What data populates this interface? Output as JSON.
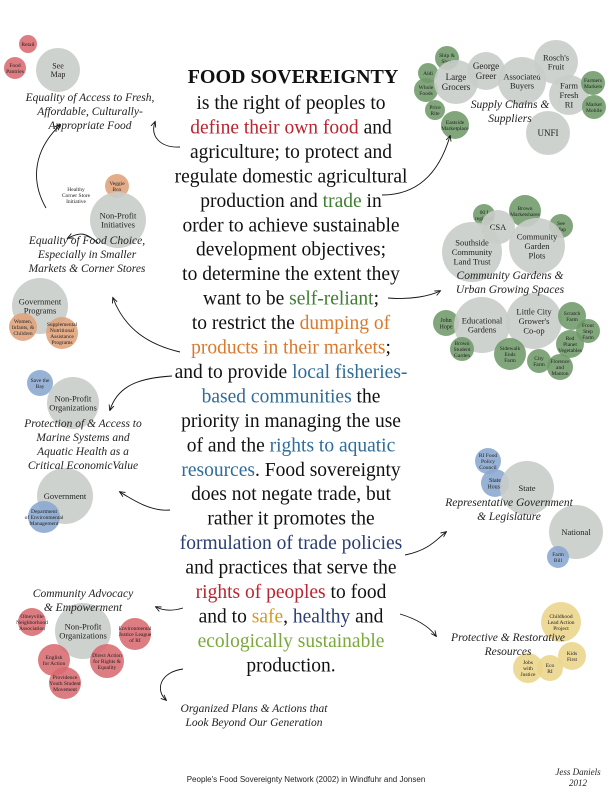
{
  "title": "FOOD SOVEREIGNTY",
  "colors": {
    "red": "#b8242f",
    "green": "#3f7d2f",
    "orange": "#d9792e",
    "blue": "#2e6c9a",
    "navy": "#2b3d73",
    "gold": "#d89a22",
    "ltgreen": "#7aa83b",
    "gray_bubble": "#c9cdc9",
    "red_bubble": "#d86a6f",
    "green_bubble": "#6f9a6a",
    "orange_bubble": "#e0a27a",
    "blue_bubble": "#8aa7d0",
    "yellow_bubble": "#ecd58a"
  },
  "body_lines": [
    [
      {
        "t": "is the right of peoples to",
        "c": ""
      }
    ],
    [
      {
        "t": "define their own food",
        "c": "red"
      },
      {
        "t": " and",
        "c": ""
      }
    ],
    [
      {
        "t": "agriculture; to protect and",
        "c": ""
      }
    ],
    [
      {
        "t": "regulate domestic agricultural",
        "c": ""
      }
    ],
    [
      {
        "t": "production and ",
        "c": ""
      },
      {
        "t": "trade",
        "c": "green"
      },
      {
        "t": " in",
        "c": ""
      }
    ],
    [
      {
        "t": "order to achieve sustainable",
        "c": ""
      }
    ],
    [
      {
        "t": "development objectives;",
        "c": ""
      }
    ],
    [
      {
        "t": "to determine the extent they",
        "c": ""
      }
    ],
    [
      {
        "t": "want to be ",
        "c": ""
      },
      {
        "t": "self-reliant",
        "c": "green"
      },
      {
        "t": ";",
        "c": ""
      }
    ],
    [
      {
        "t": "to restrict the ",
        "c": ""
      },
      {
        "t": "dumping of",
        "c": "orange"
      }
    ],
    [
      {
        "t": "products in their markets",
        "c": "orange"
      },
      {
        "t": ";",
        "c": ""
      }
    ],
    [
      {
        "t": "and to provide ",
        "c": ""
      },
      {
        "t": "local fisheries-",
        "c": "blue"
      }
    ],
    [
      {
        "t": "based communities",
        "c": "blue"
      },
      {
        "t": " the",
        "c": ""
      }
    ],
    [
      {
        "t": "priority in managing the use",
        "c": ""
      }
    ],
    [
      {
        "t": "of and the ",
        "c": ""
      },
      {
        "t": "rights to aquatic",
        "c": "blue"
      }
    ],
    [
      {
        "t": "resources",
        "c": "blue"
      },
      {
        "t": ". Food sovereignty",
        "c": ""
      }
    ],
    [
      {
        "t": "does not negate trade, but",
        "c": ""
      }
    ],
    [
      {
        "t": "rather it promotes the",
        "c": ""
      }
    ],
    [
      {
        "t": "formulation of trade policies",
        "c": "navy"
      }
    ],
    [
      {
        "t": "and practices that serve the",
        "c": ""
      }
    ],
    [
      {
        "t": "rights of peoples",
        "c": "red"
      },
      {
        "t": " to food",
        "c": ""
      }
    ],
    [
      {
        "t": "and to ",
        "c": ""
      },
      {
        "t": "safe",
        "c": "gold"
      },
      {
        "t": ", ",
        "c": ""
      },
      {
        "t": "healthy",
        "c": "navy"
      },
      {
        "t": " and",
        "c": ""
      }
    ],
    [
      {
        "t": "ecologically sustainable",
        "c": "ltgreen"
      }
    ],
    [
      {
        "t": "production.",
        "c": ""
      }
    ]
  ],
  "labels": [
    {
      "id": "label-equality-access",
      "lines": [
        "Equality of Access to Fresh,",
        "Affordable, Culturally-",
        "Appropriate Food"
      ]
    },
    {
      "id": "label-supply-chains",
      "lines": [
        "Supply Chains &",
        "Suppliers"
      ]
    },
    {
      "id": "label-equality-choice",
      "lines": [
        "Equality of Food Choice,",
        "Especially in Smaller",
        "Markets & Corner Stores"
      ]
    },
    {
      "id": "label-community-gardens",
      "lines": [
        "Community Gardens &",
        "Urban Growing Spaces"
      ]
    },
    {
      "id": "label-marine",
      "lines": [
        "Protection of & Access to",
        "Marine Systems and",
        "Aquatic Health as a",
        "Critical EconomicValue"
      ]
    },
    {
      "id": "label-representative",
      "lines": [
        "Representative Government",
        "& Legislature"
      ]
    },
    {
      "id": "label-advocacy",
      "lines": [
        "Community Advocacy",
        "& Empowerment"
      ]
    },
    {
      "id": "label-protective",
      "lines": [
        "Protective & Restorative",
        "Resources"
      ]
    },
    {
      "id": "label-organized",
      "lines": [
        "Organized Plans & Actions that",
        "Look Beyond Our Generation"
      ]
    }
  ],
  "bubbles": [
    {
      "lines": [
        "See",
        "Map"
      ],
      "c": "gray_bubble"
    },
    {
      "lines": [
        "Retail"
      ],
      "c": "red_bubble"
    },
    {
      "lines": [
        "Food",
        "Pantries"
      ],
      "c": "red_bubble"
    },
    {
      "lines": [
        "Ship &",
        "Shop"
      ],
      "c": "green_bubble"
    },
    {
      "lines": [
        "Aldi"
      ],
      "c": "green_bubble"
    },
    {
      "lines": [
        "Whole",
        "Foods"
      ],
      "c": "green_bubble"
    },
    {
      "lines": [
        "Large",
        "Grocers"
      ],
      "c": "gray_bubble"
    },
    {
      "lines": [
        "George",
        "Greer"
      ],
      "c": "gray_bubble"
    },
    {
      "lines": [
        "Associated",
        "Buyers"
      ],
      "c": "gray_bubble"
    },
    {
      "lines": [
        "Rosch's",
        "Fruit"
      ],
      "c": "gray_bubble"
    },
    {
      "lines": [
        "Farm",
        "Fresh",
        "RI"
      ],
      "c": "gray_bubble"
    },
    {
      "lines": [
        "Farmers",
        "Markets"
      ],
      "c": "green_bubble"
    },
    {
      "lines": [
        "Market",
        "Mobile"
      ],
      "c": "green_bubble"
    },
    {
      "lines": [
        "Price",
        "Rite"
      ],
      "c": "green_bubble"
    },
    {
      "lines": [
        "Eastside",
        "Marketplace"
      ],
      "c": "green_bubble"
    },
    {
      "lines": [
        "UNFI"
      ],
      "c": "gray_bubble"
    },
    {
      "lines": [
        "Veggie",
        "Box"
      ],
      "c": "orange_bubble"
    },
    {
      "lines": [
        "Healthy",
        "Corner Store",
        "Initiative"
      ],
      "c": "none"
    },
    {
      "lines": [
        "Non-Profit",
        "Initiatives"
      ],
      "c": "gray_bubble"
    },
    {
      "lines": [
        "Brown",
        "Marketshares"
      ],
      "c": "green_bubble"
    },
    {
      "lines": [
        "60 I",
        "regional"
      ],
      "c": "green_bubble"
    },
    {
      "lines": [
        "CSA"
      ],
      "c": "gray_bubble"
    },
    {
      "lines": [
        "See",
        "Map"
      ],
      "c": "green_bubble"
    },
    {
      "lines": [
        "Southside",
        "Community",
        "Land Trust"
      ],
      "c": "gray_bubble"
    },
    {
      "lines": [
        "Community",
        "Garden",
        "Plots"
      ],
      "c": "gray_bubble"
    },
    {
      "lines": [
        "Government",
        "Programs"
      ],
      "c": "gray_bubble"
    },
    {
      "lines": [
        "Women,",
        "Infants, &",
        "Children"
      ],
      "c": "orange_bubble"
    },
    {
      "lines": [
        "Supplemental",
        "Nutritional",
        "Assistance",
        "Programs"
      ],
      "c": "orange_bubble"
    },
    {
      "lines": [
        "John",
        "Hope"
      ],
      "c": "green_bubble"
    },
    {
      "lines": [
        "Educational",
        "Gardens"
      ],
      "c": "gray_bubble"
    },
    {
      "lines": [
        "Little City",
        "Grower's",
        "Co-op"
      ],
      "c": "gray_bubble"
    },
    {
      "lines": [
        "Scratch",
        "Farm"
      ],
      "c": "green_bubble"
    },
    {
      "lines": [
        "Front",
        "Step",
        "Farm"
      ],
      "c": "green_bubble"
    },
    {
      "lines": [
        "Red",
        "Planet",
        "Vegetables"
      ],
      "c": "green_bubble"
    },
    {
      "lines": [
        "Brown",
        "Student",
        "Garden"
      ],
      "c": "green_bubble"
    },
    {
      "lines": [
        "Sidewalk",
        "Ends",
        "Farm"
      ],
      "c": "green_bubble"
    },
    {
      "lines": [
        "City",
        "Farm"
      ],
      "c": "green_bubble"
    },
    {
      "lines": [
        "Florence",
        "and",
        "Manton"
      ],
      "c": "green_bubble"
    },
    {
      "lines": [
        "Save the",
        "Bay"
      ],
      "c": "blue_bubble"
    },
    {
      "lines": [
        "Non-Profit",
        "Organizations"
      ],
      "c": "gray_bubble"
    },
    {
      "lines": [
        "Government"
      ],
      "c": "gray_bubble"
    },
    {
      "lines": [
        "Department",
        "of Environmental",
        "Management"
      ],
      "c": "blue_bubble"
    },
    {
      "lines": [
        "RI Food",
        "Policy",
        "Council"
      ],
      "c": "blue_bubble"
    },
    {
      "lines": [
        "State",
        "House"
      ],
      "c": "blue_bubble"
    },
    {
      "lines": [
        "State"
      ],
      "c": "gray_bubble"
    },
    {
      "lines": [
        "National"
      ],
      "c": "gray_bubble"
    },
    {
      "lines": [
        "Farm",
        "Bill"
      ],
      "c": "blue_bubble"
    },
    {
      "lines": [
        "Olneyville",
        "Neighborhood",
        "Association"
      ],
      "c": "red_bubble"
    },
    {
      "lines": [
        "Non-Profit",
        "Organizations"
      ],
      "c": "gray_bubble"
    },
    {
      "lines": [
        "Environmental",
        "Justice League",
        "of RI"
      ],
      "c": "red_bubble"
    },
    {
      "lines": [
        "English",
        "for Action"
      ],
      "c": "red_bubble"
    },
    {
      "lines": [
        "Direct Action",
        "for Rights &",
        "Equality"
      ],
      "c": "red_bubble"
    },
    {
      "lines": [
        "Providence",
        "Youth Student",
        "Movement"
      ],
      "c": "red_bubble"
    },
    {
      "lines": [
        "Childhood",
        "Lead Action",
        "Project"
      ],
      "c": "yellow_bubble"
    },
    {
      "lines": [
        "Kids",
        "First"
      ],
      "c": "yellow_bubble"
    },
    {
      "lines": [
        "Jobs",
        "with",
        "Justice"
      ],
      "c": "yellow_bubble"
    },
    {
      "lines": [
        "Eco",
        "RI"
      ],
      "c": "yellow_bubble"
    }
  ],
  "footer": "People's Food Sovereignty Network (2002) in Windfuhr and Jonsen",
  "signature_name": "Jess Daniels",
  "signature_year": "2012"
}
